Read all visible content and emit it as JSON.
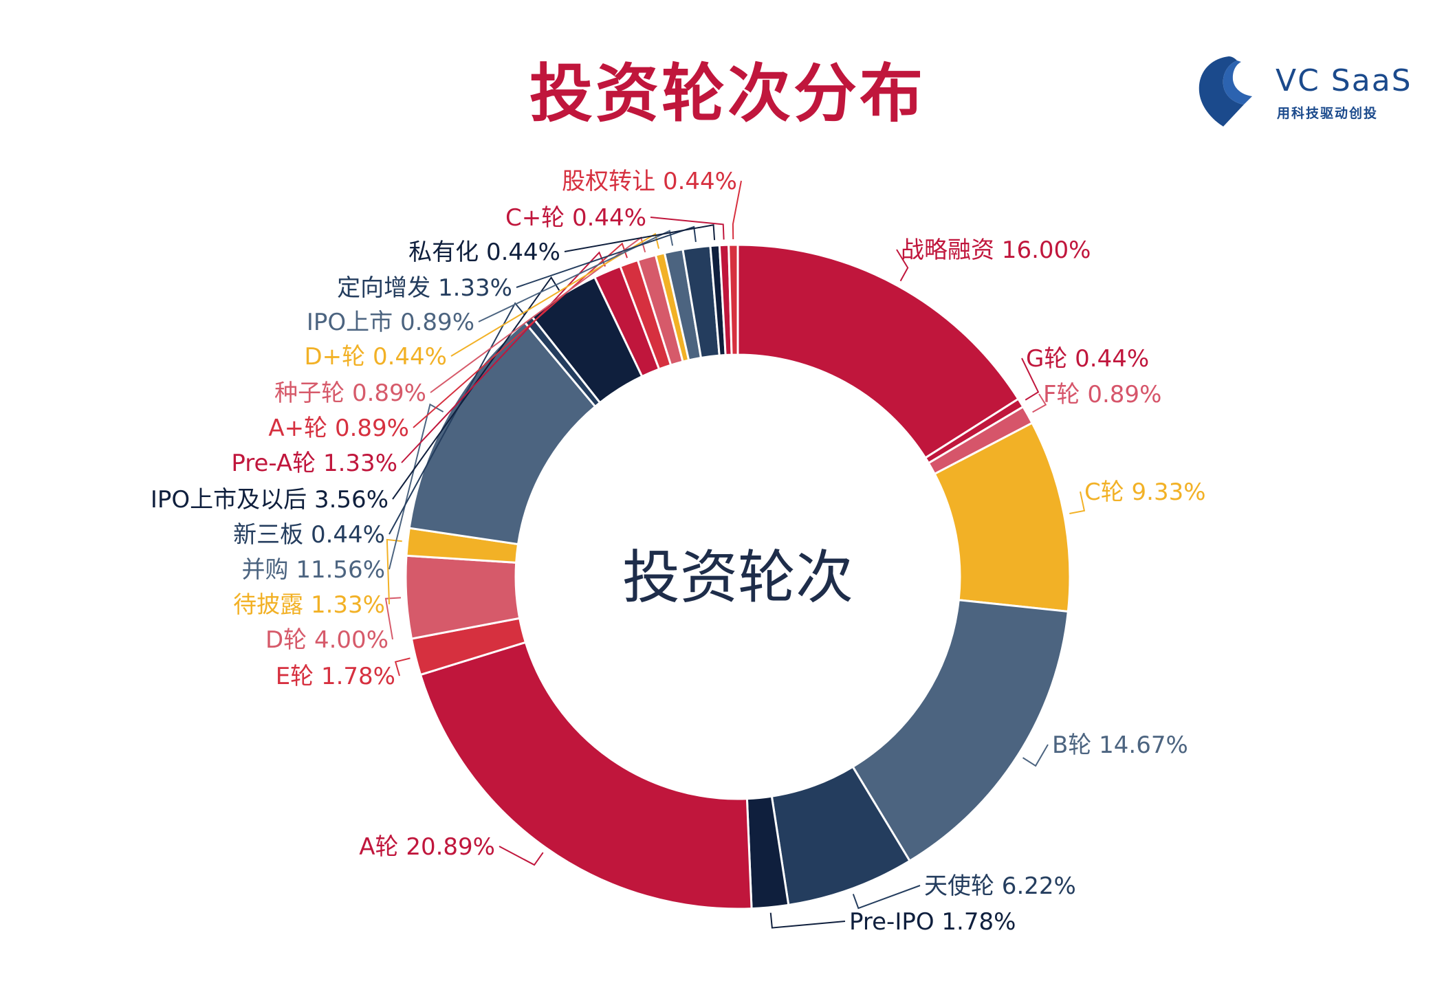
{
  "page": {
    "title": "投资轮次分布",
    "logo": {
      "name": "VC SaaS",
      "tagline": "用科技驱动创投",
      "icon": "vcsaas-logo-icon",
      "color": "#1b4a8c"
    }
  },
  "chart_data": {
    "type": "pie",
    "donut": true,
    "center_label": "投资轮次",
    "unit": "%",
    "slices": [
      {
        "label": "战略融资",
        "value": 16.0,
        "color": "#c0163c"
      },
      {
        "label": "G轮",
        "value": 0.44,
        "color": "#c0163c"
      },
      {
        "label": "F轮",
        "value": 0.89,
        "color": "#d6556a"
      },
      {
        "label": "C轮",
        "value": 9.33,
        "color": "#f2b126"
      },
      {
        "label": "B轮",
        "value": 14.67,
        "color": "#4c6480"
      },
      {
        "label": "天使轮",
        "value": 6.22,
        "color": "#243d5e"
      },
      {
        "label": "Pre-IPO",
        "value": 1.78,
        "color": "#0f1f3d"
      },
      {
        "label": "A轮",
        "value": 20.89,
        "color": "#c0163c"
      },
      {
        "label": "E轮",
        "value": 1.78,
        "color": "#d6303f"
      },
      {
        "label": "D轮",
        "value": 4.0,
        "color": "#d65a6a"
      },
      {
        "label": "待披露",
        "value": 1.33,
        "color": "#f2b126"
      },
      {
        "label": "并购",
        "value": 11.56,
        "color": "#4c6480"
      },
      {
        "label": "新三板",
        "value": 0.44,
        "color": "#243d5e"
      },
      {
        "label": "IPO上市及以后",
        "value": 3.56,
        "color": "#0f1f3d"
      },
      {
        "label": "Pre-A轮",
        "value": 1.33,
        "color": "#c0163c"
      },
      {
        "label": "A+轮",
        "value": 0.89,
        "color": "#d6303f"
      },
      {
        "label": "种子轮",
        "value": 0.89,
        "color": "#d65a6a"
      },
      {
        "label": "D+轮",
        "value": 0.44,
        "color": "#f2b126"
      },
      {
        "label": "IPO上市",
        "value": 0.89,
        "color": "#4c6480"
      },
      {
        "label": "定向增发",
        "value": 1.33,
        "color": "#243d5e"
      },
      {
        "label": "私有化",
        "value": 0.44,
        "color": "#0f1f3d"
      },
      {
        "label": "C+轮",
        "value": 0.44,
        "color": "#c0163c"
      },
      {
        "label": "股权转让",
        "value": 0.44,
        "color": "#d6303f"
      }
    ]
  }
}
